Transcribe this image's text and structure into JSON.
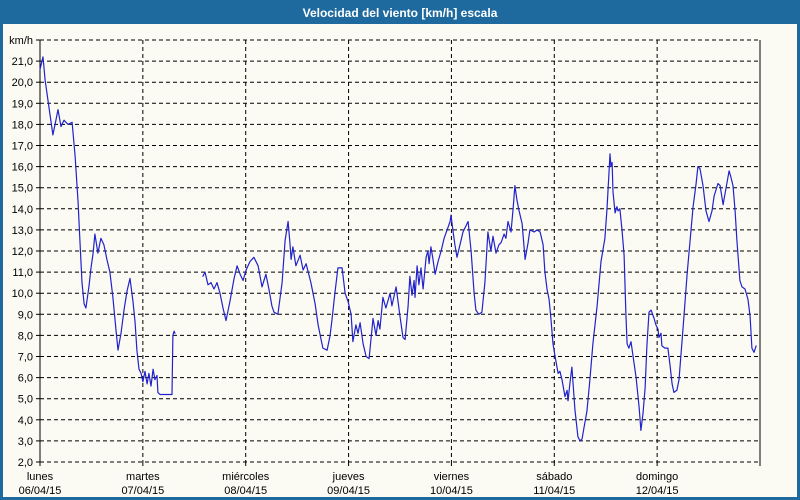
{
  "window": {
    "title": "Velocidad del viento [km/h] escala"
  },
  "colors": {
    "titlebar": "#1e6a9f",
    "window_border": "#1e6a9f",
    "background": "#fbfbf3",
    "grid": "#000000",
    "axis": "#000000",
    "line": "#2222cc",
    "title_text": "#ffffff",
    "label_text": "#000000"
  },
  "chart_data": {
    "type": "line",
    "title": "Velocidad del viento [km/h] escala",
    "y_unit_label": "km/h",
    "ylabel": "km/h",
    "ylim": [
      2,
      22
    ],
    "y_tick_step": 1,
    "y_tick_labels": [
      "2,0",
      "3,0",
      "4,0",
      "5,0",
      "6,0",
      "7,0",
      "8,0",
      "9,0",
      "10,0",
      "11,0",
      "12,0",
      "13,0",
      "14,0",
      "15,0",
      "16,0",
      "17,0",
      "18,0",
      "19,0",
      "20,0",
      "21,0"
    ],
    "grid": "dashed",
    "legend": "none",
    "x_unit": "hours since Monday 00:00",
    "xlim": [
      0,
      168
    ],
    "x_categories": [
      {
        "name": "lunes",
        "date": "06/04/15"
      },
      {
        "name": "martes",
        "date": "07/04/15"
      },
      {
        "name": "miércoles",
        "date": "08/04/15"
      },
      {
        "name": "jueves",
        "date": "09/04/15"
      },
      {
        "name": "viernes",
        "date": "10/04/15"
      },
      {
        "name": "sábado",
        "date": "11/04/15"
      },
      {
        "name": "domingo",
        "date": "12/04/15"
      }
    ],
    "series": [
      {
        "name": "Velocidad del viento",
        "color": "#2222cc",
        "segments": [
          [
            [
              0,
              20.6
            ],
            [
              0.7,
              21.2
            ],
            [
              1.2,
              20.1
            ],
            [
              1.9,
              19.1
            ],
            [
              2.6,
              18.1
            ],
            [
              3,
              17.5
            ],
            [
              3.7,
              18.2
            ],
            [
              4.2,
              18.7
            ],
            [
              4.9,
              17.9
            ],
            [
              5.6,
              18.2
            ],
            [
              6.5,
              18
            ],
            [
              7.5,
              18.1
            ],
            [
              8.2,
              16.5
            ],
            [
              8.9,
              14.3
            ],
            [
              9.3,
              12.5
            ],
            [
              9.8,
              10.5
            ],
            [
              10.3,
              9.5
            ],
            [
              10.7,
              9.3
            ],
            [
              11.4,
              10.3
            ],
            [
              11.9,
              11.2
            ],
            [
              12.4,
              11.9
            ],
            [
              12.8,
              12.8
            ],
            [
              13.5,
              11.9
            ],
            [
              14.2,
              12.6
            ],
            [
              14.9,
              12.3
            ],
            [
              15.6,
              11.6
            ],
            [
              16.3,
              11
            ],
            [
              17,
              9.8
            ],
            [
              17.7,
              8.3
            ],
            [
              18.2,
              7.3
            ],
            [
              18.9,
              8.1
            ],
            [
              19.6,
              9.2
            ],
            [
              20.3,
              10.1
            ],
            [
              21,
              10.7
            ],
            [
              21.7,
              9.6
            ],
            [
              22.2,
              8.6
            ],
            [
              22.6,
              7.3
            ],
            [
              23.1,
              6.4
            ],
            [
              23.6,
              6.2
            ],
            [
              24,
              5.8
            ],
            [
              24.5,
              6.3
            ],
            [
              25,
              5.7
            ],
            [
              25.4,
              6.2
            ],
            [
              25.9,
              5.6
            ],
            [
              26.4,
              6.4
            ],
            [
              26.8,
              5.9
            ],
            [
              27.3,
              6.1
            ],
            [
              27.5,
              5.3
            ],
            [
              28,
              5.2
            ],
            [
              30.8,
              5.2
            ],
            [
              31,
              8
            ],
            [
              31.3,
              8.2
            ],
            [
              31.5,
              8.1
            ]
          ],
          [
            [
              38,
              10.8
            ],
            [
              38.5,
              11
            ],
            [
              39.2,
              10.4
            ],
            [
              39.9,
              10.5
            ],
            [
              40.6,
              10.2
            ],
            [
              41.3,
              10.5
            ],
            [
              42,
              10
            ],
            [
              42.7,
              9.3
            ],
            [
              43.4,
              8.7
            ],
            [
              44.3,
              9.6
            ],
            [
              45.3,
              10.7
            ],
            [
              46,
              11.3
            ],
            [
              46.7,
              10.9
            ],
            [
              47.4,
              10.6
            ],
            [
              48.1,
              11.1
            ],
            [
              49,
              11.5
            ],
            [
              49.9,
              11.7
            ],
            [
              50.9,
              11.3
            ],
            [
              51.8,
              10.3
            ],
            [
              52.7,
              10.9
            ],
            [
              53.4,
              10.2
            ],
            [
              54.1,
              9.4
            ],
            [
              54.6,
              9.1
            ],
            [
              55.5,
              9
            ],
            [
              56.5,
              10.5
            ],
            [
              57.2,
              12.5
            ],
            [
              57.9,
              13.4
            ],
            [
              58.3,
              12.4
            ],
            [
              58.6,
              11.6
            ],
            [
              59,
              12.2
            ],
            [
              59.7,
              11.3
            ],
            [
              60.7,
              11.8
            ],
            [
              61.4,
              11.1
            ],
            [
              62.1,
              11.4
            ],
            [
              63.2,
              10.5
            ],
            [
              64.2,
              9.5
            ],
            [
              64.9,
              8.5
            ],
            [
              65.6,
              7.8
            ],
            [
              66,
              7.4
            ],
            [
              67,
              7.3
            ],
            [
              67.7,
              8
            ],
            [
              68.1,
              8.7
            ],
            [
              68.8,
              10
            ],
            [
              69.5,
              11.2
            ],
            [
              70.5,
              11.2
            ],
            [
              71.2,
              10
            ],
            [
              71.9,
              9.6
            ],
            [
              72.6,
              9
            ],
            [
              73,
              7.7
            ],
            [
              73.7,
              8.5
            ],
            [
              74.2,
              8.1
            ],
            [
              74.7,
              8.6
            ],
            [
              75.4,
              7.6
            ],
            [
              76.1,
              7
            ],
            [
              76.8,
              6.9
            ],
            [
              77.7,
              8.8
            ],
            [
              78.4,
              8
            ],
            [
              78.9,
              8.7
            ],
            [
              79.3,
              8.3
            ],
            [
              80,
              9.8
            ],
            [
              80.7,
              9.3
            ],
            [
              81.7,
              10
            ],
            [
              82.1,
              9.4
            ],
            [
              83.1,
              10.3
            ],
            [
              84,
              8.9
            ],
            [
              84.7,
              7.9
            ],
            [
              85.2,
              7.8
            ],
            [
              85.9,
              9.4
            ],
            [
              86.3,
              10.8
            ],
            [
              86.8,
              9.9
            ],
            [
              87.3,
              10.6
            ],
            [
              87.5,
              9.8
            ],
            [
              88,
              11.3
            ],
            [
              88.4,
              10.4
            ],
            [
              88.9,
              11.2
            ],
            [
              89.4,
              10.2
            ],
            [
              90.1,
              11.7
            ],
            [
              90.5,
              12
            ],
            [
              90.8,
              11.4
            ],
            [
              91.2,
              12.2
            ],
            [
              91.7,
              11.6
            ],
            [
              92.2,
              10.9
            ],
            [
              92.9,
              11.5
            ],
            [
              93.6,
              12
            ],
            [
              94.3,
              12.6
            ],
            [
              95,
              13
            ],
            [
              95.7,
              13.4
            ],
            [
              95.9,
              13.7
            ],
            [
              96.4,
              12.9
            ],
            [
              96.8,
              12.3
            ],
            [
              97.3,
              11.7
            ],
            [
              98,
              12.3
            ],
            [
              98.7,
              12.9
            ],
            [
              99.4,
              13.2
            ],
            [
              99.9,
              13.4
            ],
            [
              100.6,
              12
            ],
            [
              101.3,
              10
            ],
            [
              101.7,
              9.2
            ],
            [
              102.4,
              9
            ],
            [
              103.1,
              9.1
            ],
            [
              103.8,
              10.5
            ],
            [
              104.5,
              12.9
            ],
            [
              105.2,
              12
            ],
            [
              105.7,
              12.7
            ],
            [
              106.4,
              11.9
            ],
            [
              107.1,
              12.3
            ],
            [
              107.6,
              12.4
            ],
            [
              108.3,
              12.8
            ],
            [
              108.7,
              12.6
            ],
            [
              109.2,
              13.4
            ],
            [
              109.9,
              12.9
            ],
            [
              110.4,
              14
            ],
            [
              110.8,
              15.1
            ],
            [
              111.3,
              14.4
            ],
            [
              111.8,
              13.9
            ],
            [
              112.5,
              13.3
            ],
            [
              113.2,
              11.6
            ],
            [
              113.9,
              12.4
            ],
            [
              114.3,
              13
            ],
            [
              115.3,
              12.9
            ],
            [
              116,
              13
            ],
            [
              116.7,
              12.9
            ],
            [
              117.4,
              12.3
            ],
            [
              117.8,
              11
            ],
            [
              118.3,
              10.2
            ],
            [
              118.8,
              9.7
            ],
            [
              119.2,
              8.8
            ],
            [
              119.7,
              7.6
            ],
            [
              120.2,
              7
            ],
            [
              120.9,
              6.2
            ],
            [
              121.3,
              6.3
            ],
            [
              121.8,
              5.9
            ],
            [
              122.5,
              5.1
            ],
            [
              123,
              5.4
            ],
            [
              123.2,
              4.9
            ],
            [
              123.7,
              5.8
            ],
            [
              124.1,
              6.5
            ],
            [
              124.8,
              4.5
            ],
            [
              125.5,
              3.2
            ],
            [
              126,
              3
            ],
            [
              126.5,
              3.1
            ],
            [
              126.9,
              3.6
            ],
            [
              127.6,
              4.4
            ],
            [
              128.3,
              5.9
            ],
            [
              129,
              7.6
            ],
            [
              130,
              9.4
            ],
            [
              130.9,
              11.5
            ],
            [
              131.8,
              12.6
            ],
            [
              132.3,
              14
            ],
            [
              132.8,
              15.8
            ],
            [
              133,
              16.6
            ],
            [
              133.2,
              16
            ],
            [
              133.5,
              16.2
            ],
            [
              133.7,
              14.8
            ],
            [
              134.2,
              13.8
            ],
            [
              134.6,
              14.1
            ],
            [
              134.9,
              13.9
            ],
            [
              135.3,
              14
            ],
            [
              135.8,
              13
            ],
            [
              136.3,
              11.8
            ],
            [
              136.7,
              9
            ],
            [
              137,
              7.6
            ],
            [
              137.4,
              7.4
            ],
            [
              137.9,
              7.7
            ],
            [
              138.4,
              7
            ],
            [
              139.1,
              6
            ],
            [
              139.8,
              4.6
            ],
            [
              140.2,
              3.5
            ],
            [
              140.7,
              4.3
            ],
            [
              141.2,
              5.5
            ],
            [
              141.6,
              7.5
            ],
            [
              142.1,
              9.1
            ],
            [
              142.6,
              9.2
            ],
            [
              143.3,
              8.8
            ],
            [
              143.7,
              8.5
            ],
            [
              144.2,
              8.3
            ],
            [
              144.4,
              7.9
            ],
            [
              144.9,
              8.1
            ],
            [
              145.1,
              7.5
            ],
            [
              145.8,
              7.4
            ],
            [
              146.5,
              7.4
            ],
            [
              147,
              6.6
            ],
            [
              147.5,
              5.7
            ],
            [
              147.9,
              5.3
            ],
            [
              148.6,
              5.4
            ],
            [
              149.1,
              5.9
            ],
            [
              149.8,
              7.7
            ],
            [
              150.3,
              9
            ],
            [
              151,
              10.9
            ],
            [
              151.7,
              12.5
            ],
            [
              152.4,
              14.1
            ],
            [
              153.1,
              15.2
            ],
            [
              153.5,
              16
            ],
            [
              154,
              15.9
            ],
            [
              154.7,
              15.1
            ],
            [
              155.4,
              13.9
            ],
            [
              156.1,
              13.4
            ],
            [
              156.8,
              13.9
            ],
            [
              157.3,
              14.6
            ],
            [
              158.2,
              15.2
            ],
            [
              158.7,
              15.1
            ],
            [
              159.4,
              14.2
            ],
            [
              160.1,
              15
            ],
            [
              160.8,
              15.8
            ],
            [
              161.2,
              15.5
            ],
            [
              161.7,
              15.1
            ],
            [
              162.2,
              13.9
            ],
            [
              162.6,
              12.5
            ],
            [
              163.3,
              10.6
            ],
            [
              163.8,
              10.3
            ],
            [
              164.5,
              10.2
            ],
            [
              165.2,
              9.7
            ],
            [
              165.7,
              8.9
            ],
            [
              166.1,
              7.4
            ],
            [
              166.6,
              7.2
            ],
            [
              167.1,
              7.5
            ]
          ]
        ]
      }
    ]
  }
}
